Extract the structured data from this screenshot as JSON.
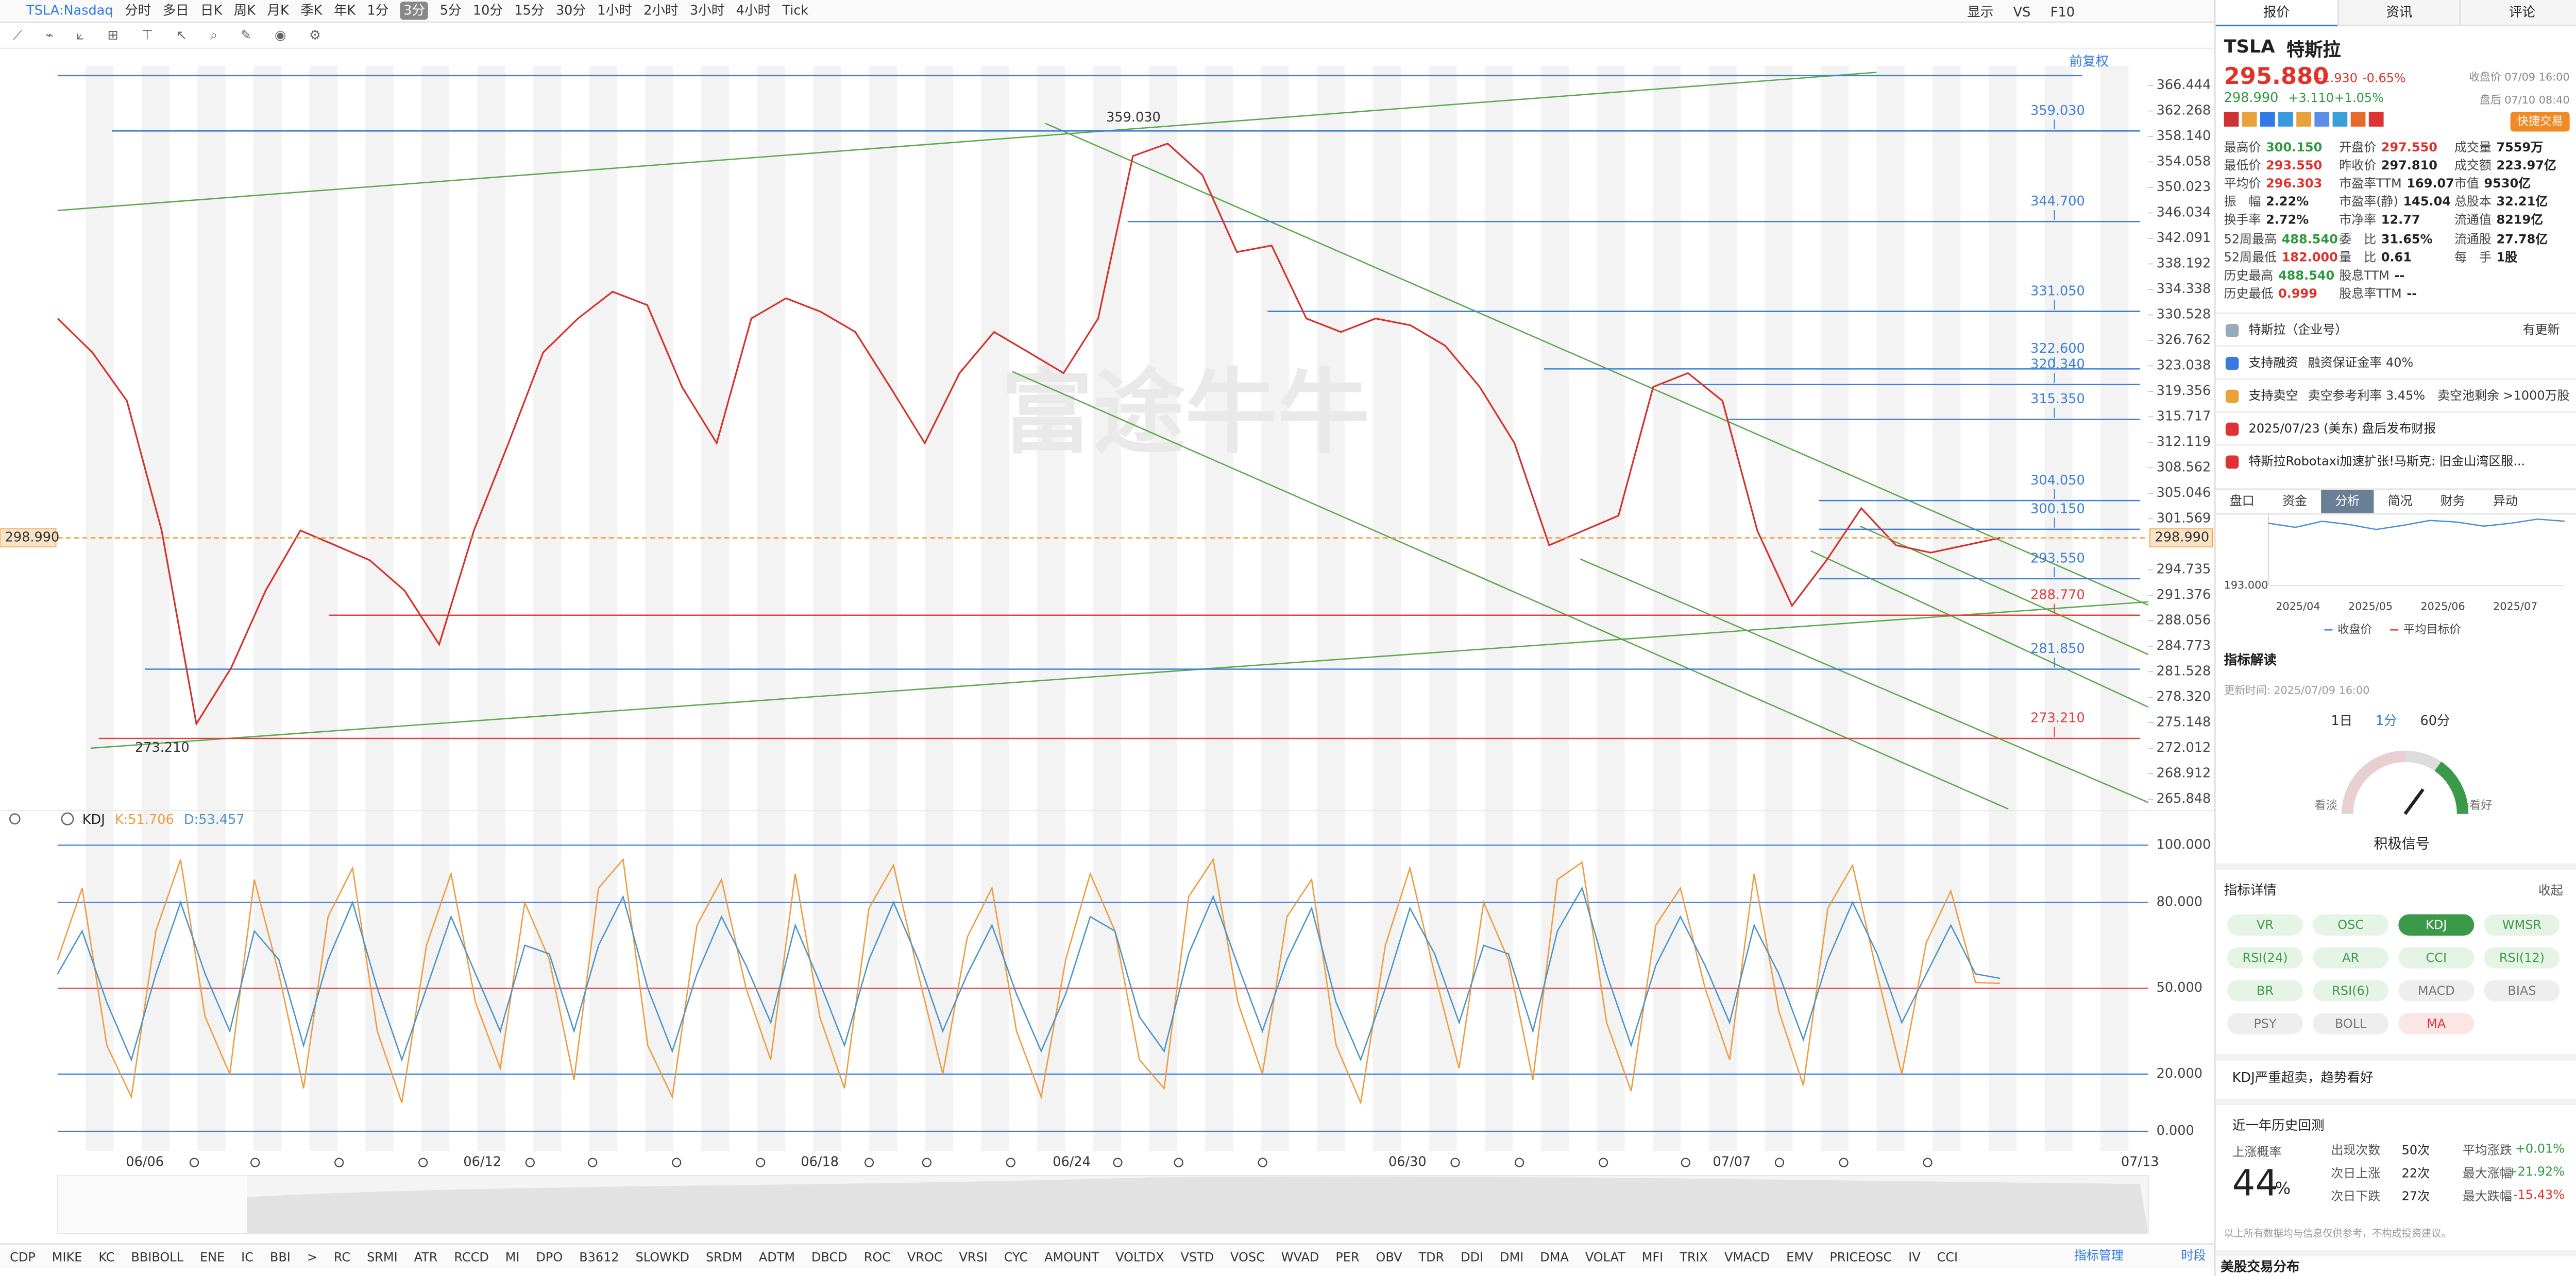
{
  "toolbar": {
    "symbol": "TSLA:Nasdaq",
    "periods": [
      "分时",
      "多日",
      "日K",
      "周K",
      "月K",
      "季K",
      "年K",
      "1分",
      "3分",
      "5分",
      "10分",
      "15分",
      "30分",
      "1小时",
      "2小时",
      "3小时",
      "4小时",
      "Tick"
    ],
    "active_period": "3分",
    "right": [
      "显示",
      "VS",
      "F10"
    ]
  },
  "chart_data": [
    {
      "type": "line",
      "log_scale": true,
      "adjust": "前复权",
      "watermark": "富途牛牛",
      "ylim": [
        265.848,
        366.444
      ],
      "yticks": [
        366.444,
        362.268,
        {
          "value": 358.14,
          "label": "358.140"
        },
        354.058,
        350.023,
        346.034,
        342.091,
        338.192,
        334.338,
        330.528,
        326.762,
        323.038,
        319.356,
        315.717,
        312.119,
        308.562,
        305.046,
        301.569,
        294.735,
        291.376,
        288.056,
        284.773,
        281.528,
        {
          "value": 278.32,
          "label": "278.320"
        },
        275.148,
        272.012,
        268.912,
        265.848
      ],
      "x_axis_labels": [
        "06/06",
        "06/12",
        "06/18",
        "06/24",
        "06/30",
        "07/07",
        "07/13"
      ],
      "series": [
        {
          "color": "#d6302b",
          "values": [
            330,
            325,
            318,
            300,
            275,
            282,
            292,
            300,
            298,
            296,
            292,
            285,
            300,
            312,
            325,
            330,
            334,
            332,
            320,
            312,
            330,
            333,
            331,
            328,
            320,
            312,
            322,
            328,
            325,
            322,
            330,
            355,
            357,
            352,
            340,
            341,
            330,
            328,
            330,
            329,
            326,
            320,
            312,
            298,
            300,
            302,
            320,
            322,
            318,
            300,
            290,
            296,
            303,
            298,
            297,
            298,
            299
          ]
        }
      ],
      "current_price": {
        "value": 298.99,
        "label": "298.990",
        "color": "#f0a040"
      },
      "levels": [
        {
          "value": 359.03,
          "label": "359.030",
          "color": "#3d7fd9"
        },
        {
          "value": 344.7,
          "label": "344.700",
          "color": "#3d7fd9"
        },
        {
          "value": 331.05,
          "label": "331.050",
          "color": "#3d7fd9"
        },
        {
          "value": 322.6,
          "label": "322.600",
          "color": "#3d7fd9"
        },
        {
          "value": 320.34,
          "label": "320.340",
          "color": "#3d7fd9"
        },
        {
          "value": 315.35,
          "label": "315.350",
          "color": "#3d7fd9"
        },
        {
          "value": 304.05,
          "label": "304.050",
          "color": "#3d7fd9"
        },
        {
          "value": 300.15,
          "label": "300.150",
          "color": "#3d7fd9"
        },
        {
          "value": 293.55,
          "label": "293.550",
          "color": "#3d7fd9"
        },
        {
          "value": 288.77,
          "label": "288.770",
          "color": "#e04040"
        },
        {
          "value": 281.85,
          "label": "281.850",
          "color": "#3d7fd9"
        },
        {
          "value": 273.21,
          "label": "273.210",
          "color": "#e04040"
        }
      ],
      "annotations": [
        {
          "value": 359.03,
          "label": "359.030"
        },
        {
          "value": 273.21,
          "label": "273.210"
        }
      ]
    },
    {
      "type": "line",
      "name": "KDJ",
      "ylim": [
        0,
        100
      ],
      "yticks": [
        {
          "value": 100,
          "label": "100.000"
        },
        {
          "value": 80,
          "label": "80.000"
        },
        {
          "value": 50,
          "label": "50.000"
        },
        {
          "value": 20,
          "label": "20.000"
        },
        {
          "value": 0,
          "label": "0.000"
        }
      ],
      "series": [
        {
          "name": "K",
          "readout": "K:51.706",
          "color": "#ef9a3c",
          "values": [
            60,
            85,
            30,
            12,
            70,
            95,
            40,
            20,
            88,
            55,
            15,
            75,
            92,
            35,
            10,
            65,
            90,
            45,
            22,
            80,
            60,
            18,
            85,
            95,
            30,
            12,
            72,
            88,
            50,
            25,
            90,
            40,
            15,
            78,
            93,
            55,
            20,
            68,
            85,
            35,
            12,
            60,
            90,
            70,
            25,
            15,
            82,
            95,
            45,
            20,
            75,
            88,
            30,
            10,
            65,
            92,
            55,
            22,
            80,
            60,
            18,
            88,
            94,
            38,
            14,
            72,
            85,
            50,
            25,
            90,
            42,
            16,
            78,
            93,
            55,
            20,
            66,
            84,
            52,
            51.706
          ]
        },
        {
          "name": "D",
          "readout": "D:53.457",
          "color": "#4a93c9",
          "values": [
            55,
            70,
            45,
            25,
            55,
            80,
            55,
            35,
            70,
            60,
            30,
            60,
            80,
            50,
            25,
            50,
            75,
            55,
            35,
            65,
            62,
            35,
            65,
            82,
            50,
            28,
            55,
            75,
            58,
            38,
            72,
            52,
            30,
            60,
            80,
            60,
            35,
            55,
            72,
            48,
            28,
            48,
            75,
            70,
            40,
            28,
            62,
            82,
            58,
            35,
            60,
            78,
            45,
            25,
            50,
            78,
            62,
            38,
            65,
            62,
            35,
            70,
            85,
            55,
            30,
            58,
            75,
            58,
            38,
            72,
            55,
            32,
            60,
            80,
            62,
            38,
            55,
            72,
            55,
            53.457
          ]
        }
      ]
    },
    {
      "type": "line",
      "ylim": [
        193,
        362
      ],
      "yticks": [
        {
          "value": 193,
          "label": "193.000"
        }
      ],
      "x_axis_labels": [
        "2025/04",
        "2025/05",
        "2025/06",
        "2025/07"
      ],
      "series": [
        {
          "name": "收盘价",
          "color": "#4a8fd9",
          "values": [
            345,
            335,
            350,
            342,
            330,
            340,
            352,
            348,
            338,
            345,
            355,
            350
          ]
        },
        {
          "name": "平均目标价",
          "color": "#e05040",
          "values": [
            null,
            null,
            null,
            null,
            null,
            null,
            null,
            null,
            null,
            null,
            null,
            null
          ]
        }
      ]
    }
  ],
  "right_panel": {
    "tabs": [
      "报价",
      "资讯",
      "评论"
    ],
    "symbol": "TSLA",
    "name": "特斯拉",
    "price": "295.880",
    "change": "-1.930",
    "change_pct": "-0.65%",
    "close_time": "收盘价 07/09 16:00",
    "after_price": "298.990",
    "after_change": "+3.110",
    "after_pct": "+1.05%",
    "after_time": "盘后 07/10 08:40",
    "trade_button": "快捷交易",
    "stats": [
      [
        {
          "label": "最高价",
          "value": "300.150",
          "color": "#2e9a3e"
        },
        {
          "label": "最低价",
          "value": "293.550",
          "color": "#e0322b"
        },
        {
          "label": "平均价",
          "value": "296.303",
          "color": "#e0322b"
        },
        {
          "label": "振　幅",
          "value": "2.22%",
          "color": "#222"
        },
        {
          "label": "换手率",
          "value": "2.72%",
          "color": "#222"
        },
        {
          "label": "52周最高",
          "value": "488.540",
          "color": "#2e9a3e"
        },
        {
          "label": "52周最低",
          "value": "182.000",
          "color": "#e0322b"
        },
        {
          "label": "历史最高",
          "value": "488.540",
          "color": "#2e9a3e"
        },
        {
          "label": "历史最低",
          "value": "0.999",
          "color": "#e0322b"
        }
      ],
      [
        {
          "label": "开盘价",
          "value": "297.550",
          "color": "#e0322b"
        },
        {
          "label": "昨收价",
          "value": "297.810",
          "color": "#222"
        },
        {
          "label": "市盈率TTM",
          "value": "169.07",
          "color": "#222"
        },
        {
          "label": "市盈率(静)",
          "value": "145.04",
          "color": "#222"
        },
        {
          "label": "市净率",
          "value": "12.77",
          "color": "#222"
        },
        {
          "label": "委　比",
          "value": "31.65%",
          "color": "#222"
        },
        {
          "label": "量　比",
          "value": "0.61",
          "color": "#222"
        },
        {
          "label": "股息TTM",
          "value": "--",
          "color": "#222"
        },
        {
          "label": "股息率TTM",
          "value": "--",
          "color": "#222"
        }
      ],
      [
        {
          "label": "成交量",
          "value": "7559万",
          "color": "#222"
        },
        {
          "label": "成交额",
          "value": "223.97亿",
          "color": "#222"
        },
        {
          "label": "市值",
          "value": "9530亿",
          "color": "#222"
        },
        {
          "label": "总股本",
          "value": "32.21亿",
          "color": "#222"
        },
        {
          "label": "流通值",
          "value": "8219亿",
          "color": "#222"
        },
        {
          "label": "流通股",
          "value": "27.78亿",
          "color": "#222"
        },
        {
          "label": "每　手",
          "value": "1股",
          "color": "#222"
        }
      ]
    ],
    "info": [
      {
        "text": "特斯拉（企业号）",
        "extra": "有更新"
      },
      {
        "text": "支持融资",
        "extra": "融资保证金率 40%"
      },
      {
        "text": "支持卖空",
        "extra": "卖空参考利率 3.45%　卖空池剩余 >1000万股"
      },
      {
        "text": "2025/07/23 (美东) 盘后发布财报",
        "extra": ""
      },
      {
        "text": "特斯拉Robotaxi加速扩张!马斯克: 旧金山湾区服...",
        "extra": ""
      }
    ],
    "subtabs": [
      "盘口",
      "资金",
      "分析",
      "简况",
      "财务",
      "异动"
    ],
    "active_subtab": "分析",
    "indicator_title": "指标解读",
    "update_time": "更新时间: 2025/07/09 16:00",
    "intervals": [
      "1日",
      "1分",
      "60分"
    ],
    "active_interval": "1分",
    "gauge": {
      "left": "看淡",
      "right": "看好",
      "signal": "积极信号"
    },
    "detail_title": "指标详情",
    "collapse": "收起",
    "tags": [
      {
        "text": "VR",
        "tone": "green"
      },
      {
        "text": "OSC",
        "tone": "green"
      },
      {
        "text": "KDJ",
        "tone": "active"
      },
      {
        "text": "WMSR",
        "tone": "green"
      },
      {
        "text": "RSI(24)",
        "tone": "green"
      },
      {
        "text": "AR",
        "tone": "green"
      },
      {
        "text": "CCI",
        "tone": "green"
      },
      {
        "text": "RSI(12)",
        "tone": "green"
      },
      {
        "text": "BR",
        "tone": "green"
      },
      {
        "text": "RSI(6)",
        "tone": "green"
      },
      {
        "text": "MACD",
        "tone": "gray"
      },
      {
        "text": "BIAS",
        "tone": "gray"
      },
      {
        "text": "PSY",
        "tone": "gray"
      },
      {
        "text": "BOLL",
        "tone": "gray"
      },
      {
        "text": "MA",
        "tone": "red"
      }
    ],
    "verdict": "KDJ严重超卖，趋势看好",
    "backtest": {
      "title": "近一年历史回测",
      "prob_label": "上涨概率",
      "prob": "44",
      "prob_unit": "%",
      "rows": [
        [
          {
            "text": "出现次数",
            "color": "#555"
          },
          {
            "text": "50次",
            "color": "#222"
          },
          {
            "text": "平均涨跌",
            "color": "#555"
          },
          {
            "text": "+0.01%",
            "color": "#2e9a3e"
          }
        ],
        [
          {
            "text": "次日上涨",
            "color": "#555"
          },
          {
            "text": "22次",
            "color": "#222"
          },
          {
            "text": "最大涨幅",
            "color": "#555"
          },
          {
            "text": "+21.92%",
            "color": "#2e9a3e"
          }
        ],
        [
          {
            "text": "次日下跌",
            "color": "#555"
          },
          {
            "text": "27次",
            "color": "#222"
          },
          {
            "text": "最大跌幅",
            "color": "#555"
          },
          {
            "text": "-15.43%",
            "color": "#e0322b"
          }
        ]
      ]
    },
    "disclaimer": "以上所有数据均与信息仅供参考，不构成投资建议。",
    "footer": "美股交易分布"
  },
  "bottom_tabs": {
    "items": [
      "CDP",
      "MIKE",
      "KC",
      "BBIBOLL",
      "ENE",
      "IC",
      "BBI",
      ">",
      "RC",
      "SRMI",
      "ATR",
      "RCCD",
      "MI",
      "DPO",
      "B3612",
      "SLOWKD",
      "SRDM",
      "ADTM",
      "DBCD",
      "ROC",
      "VROC",
      "VRSI",
      "CYC",
      "AMOUNT",
      "VOLTDX",
      "VSTD",
      "VOSC",
      "WVAD",
      "PER",
      "OBV",
      "TDR",
      "DDI",
      "DMI",
      "DMA",
      "VOLAT",
      "MFI",
      "TRIX",
      "VMACD",
      "EMV",
      "PRICEOSC",
      "IV",
      "CCI"
    ],
    "manage": "指标管理",
    "session": "时段"
  }
}
